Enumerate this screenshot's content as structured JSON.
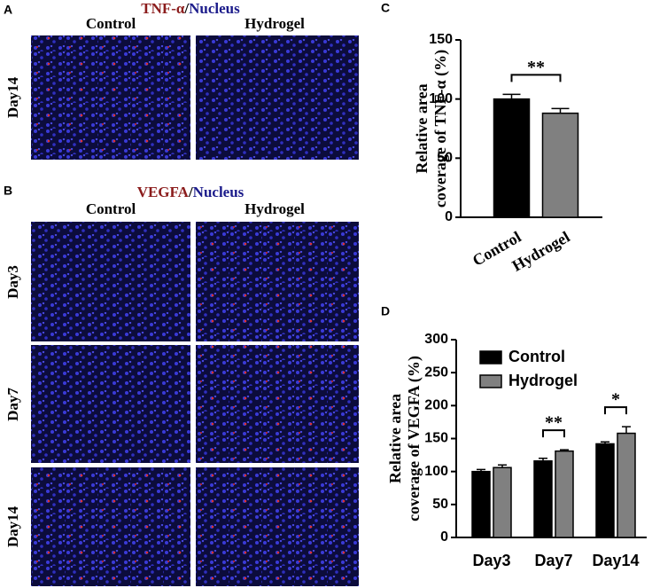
{
  "panel_letters": [
    "A",
    "B",
    "C",
    "D"
  ],
  "panel_a": {
    "title": [
      "TNF-α",
      "/",
      "Nucleus"
    ],
    "columns": [
      "Control",
      "Hydrogel"
    ],
    "rows": [
      "Day14"
    ]
  },
  "panel_b": {
    "title": [
      "VEGFA",
      "/",
      "Nucleus"
    ],
    "columns": [
      "Control",
      "Hydrogel"
    ],
    "rows": [
      "Day3",
      "Day7",
      "Day14"
    ]
  },
  "chart_data": [
    {
      "type": "bar",
      "ylabel": [
        "Relative area",
        "coverage of TNF-α (%)"
      ],
      "categories": [
        "Control",
        "Hydrogel"
      ],
      "values": [
        100,
        88
      ],
      "errors": [
        4,
        4
      ],
      "colors": [
        "#000000",
        "#808080"
      ],
      "ylim": [
        0,
        150
      ],
      "yticks": [
        0,
        50,
        100,
        150
      ],
      "significance": "**"
    },
    {
      "type": "bar",
      "ylabel": [
        "Relative area",
        "coverage of VEGFA (%)"
      ],
      "categories": [
        "Day3",
        "Day7",
        "Day14"
      ],
      "series": [
        {
          "name": "Control",
          "color": "#000000",
          "values": [
            100,
            116,
            142
          ],
          "errors": [
            3,
            4,
            3
          ]
        },
        {
          "name": "Hydrogel",
          "color": "#808080",
          "values": [
            106,
            131,
            158
          ],
          "errors": [
            4,
            2,
            10
          ]
        }
      ],
      "ylim": [
        0,
        300
      ],
      "yticks": [
        0,
        50,
        100,
        150,
        200,
        250,
        300
      ],
      "legend": "upper left",
      "significance": [
        null,
        "**",
        "*"
      ]
    }
  ]
}
